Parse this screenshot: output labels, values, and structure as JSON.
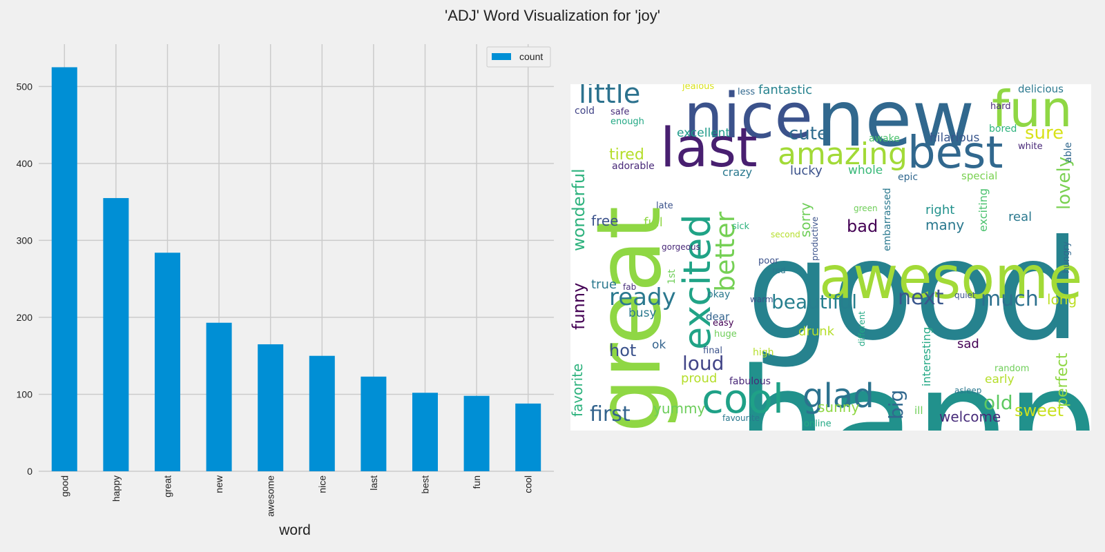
{
  "title": "'ADJ' Word Visualization for 'joy'",
  "chart_data": [
    {
      "type": "bar",
      "categories": [
        "good",
        "happy",
        "great",
        "new",
        "awesome",
        "nice",
        "last",
        "best",
        "fun",
        "cool"
      ],
      "series": [
        {
          "name": "count",
          "values": [
            525,
            355,
            284,
            193,
            165,
            150,
            123,
            102,
            98,
            88
          ]
        }
      ],
      "xlabel": "word",
      "ylabel": "",
      "ylim": [
        0,
        555
      ],
      "yticks": [
        0,
        100,
        200,
        300,
        400,
        500
      ],
      "grid": true,
      "legend": "top-right",
      "color": "#008fd5"
    }
  ],
  "wordcloud": {
    "colors": [
      "#440154",
      "#482878",
      "#3e4a89",
      "#31688e",
      "#26828e",
      "#1f9e89",
      "#35b779",
      "#6ece58",
      "#b5de2b",
      "#fde725"
    ],
    "words": [
      {
        "t": "good",
        "c": "#26828e",
        "r": false
      },
      {
        "t": "happy",
        "c": "#21918c",
        "r": false
      },
      {
        "t": "great",
        "c": "#8fd744",
        "r": true
      },
      {
        "t": "new",
        "c": "#31688e",
        "r": false
      },
      {
        "t": "nice",
        "c": "#3b528b",
        "r": false
      },
      {
        "t": "awesome",
        "c": "#a2da37",
        "r": false
      },
      {
        "t": "last",
        "c": "#481f70",
        "r": false
      },
      {
        "t": "best",
        "c": "#31688e",
        "r": false
      },
      {
        "t": "fun",
        "c": "#8fd744",
        "r": false
      },
      {
        "t": "excited",
        "c": "#20a386",
        "r": true
      },
      {
        "t": "cool",
        "c": "#1fa187",
        "r": false
      },
      {
        "t": "amazing",
        "c": "#a2da37",
        "r": false
      },
      {
        "t": "little",
        "c": "#2c728e",
        "r": false
      },
      {
        "t": "glad",
        "c": "#2c728e",
        "r": false
      },
      {
        "t": "better",
        "c": "#75d054",
        "r": true
      },
      {
        "t": "ready",
        "c": "#2a788e",
        "r": false
      },
      {
        "t": "beautiful",
        "c": "#277f8e",
        "r": false
      },
      {
        "t": "next",
        "c": "#39568c",
        "r": false
      },
      {
        "t": "much",
        "c": "#2d708e",
        "r": false
      },
      {
        "t": "first",
        "c": "#33638d",
        "r": false
      },
      {
        "t": "wonderful",
        "c": "#2db27d",
        "r": true
      },
      {
        "t": "loud",
        "c": "#414487",
        "r": false
      },
      {
        "t": "old",
        "c": "#5ec962",
        "r": false
      },
      {
        "t": "cute",
        "c": "#2f6c8e",
        "r": false
      },
      {
        "t": "sure",
        "c": "#d8e219",
        "r": false
      },
      {
        "t": "lovely",
        "c": "#7ad151",
        "r": true
      },
      {
        "t": "funny",
        "c": "#440154",
        "r": true
      },
      {
        "t": "sweet",
        "c": "#c8e020",
        "r": false
      },
      {
        "t": "big",
        "c": "#31688e",
        "r": true
      },
      {
        "t": "favorite",
        "c": "#2db27d",
        "r": true
      },
      {
        "t": "perfect",
        "c": "#8fd744",
        "r": true
      },
      {
        "t": "hot",
        "c": "#3b528b",
        "r": false
      },
      {
        "t": "fantastic",
        "c": "#26828e",
        "r": false
      },
      {
        "t": "tired",
        "c": "#b5de2b",
        "r": false
      },
      {
        "t": "yummy",
        "c": "#6ccd5a",
        "r": false
      },
      {
        "t": "sunny",
        "c": "#8fd744",
        "r": false
      },
      {
        "t": "proud",
        "c": "#b5de2b",
        "r": false
      },
      {
        "t": "long",
        "c": "#bddf26",
        "r": false
      },
      {
        "t": "welcome",
        "c": "#472c7a",
        "r": false
      },
      {
        "t": "bad",
        "c": "#440154",
        "r": false
      },
      {
        "t": "many",
        "c": "#2a788e",
        "r": false
      },
      {
        "t": "excellent",
        "c": "#1f9a8a",
        "r": false
      },
      {
        "t": "lucky",
        "c": "#3b528b",
        "r": false
      },
      {
        "t": "free",
        "c": "#3b528b",
        "r": false
      },
      {
        "t": "full",
        "c": "#8fd744",
        "r": false
      },
      {
        "t": "sorry",
        "c": "#6ece58",
        "r": true
      },
      {
        "t": "right",
        "c": "#21918c",
        "r": false
      },
      {
        "t": "real",
        "c": "#2a788e",
        "r": false
      },
      {
        "t": "true",
        "c": "#2a788e",
        "r": false
      },
      {
        "t": "busy",
        "c": "#2a788e",
        "r": false
      },
      {
        "t": "hilarious",
        "c": "#39568c",
        "r": false
      },
      {
        "t": "whole",
        "c": "#37b878",
        "r": false
      },
      {
        "t": "drunk",
        "c": "#b5de2b",
        "r": false
      },
      {
        "t": "exciting",
        "c": "#4ac16d",
        "r": true
      },
      {
        "t": "interesting",
        "c": "#22a884",
        "r": true
      },
      {
        "t": "delicious",
        "c": "#2a788e",
        "r": false
      },
      {
        "t": "early",
        "c": "#b5de2b",
        "r": false
      },
      {
        "t": "sad",
        "c": "#440154",
        "r": false
      },
      {
        "t": "crazy",
        "c": "#2a788e",
        "r": false
      },
      {
        "t": "ok",
        "c": "#33638d",
        "r": false
      },
      {
        "t": "adorable",
        "c": "#482878",
        "r": false
      },
      {
        "t": "epic",
        "c": "#31688e",
        "r": false
      },
      {
        "t": "special",
        "c": "#7ad151",
        "r": false
      },
      {
        "t": "dear",
        "c": "#33638d",
        "r": false
      },
      {
        "t": "fabulous",
        "c": "#482878",
        "r": false
      },
      {
        "t": "embarrassed",
        "c": "#2a788e",
        "r": true
      },
      {
        "t": "awake",
        "c": "#4ac16d",
        "r": false
      },
      {
        "t": "bored",
        "c": "#2db27d",
        "r": false
      },
      {
        "t": "okay",
        "c": "#2a788e",
        "r": false
      },
      {
        "t": "cold",
        "c": "#414487",
        "r": false
      },
      {
        "t": "safe",
        "c": "#472c7a",
        "r": false
      },
      {
        "t": "enough",
        "c": "#22a884",
        "r": false
      },
      {
        "t": "hard",
        "c": "#482878",
        "r": false
      },
      {
        "t": "white",
        "c": "#482878",
        "r": false
      },
      {
        "t": "late",
        "c": "#3b528b",
        "r": false
      },
      {
        "t": "1st",
        "c": "#6ece58",
        "r": true
      },
      {
        "t": "ill",
        "c": "#6ece58",
        "r": false
      },
      {
        "t": "able",
        "c": "#31688e",
        "r": true
      },
      {
        "t": "hungry",
        "c": "#31688e",
        "r": true
      },
      {
        "t": "random",
        "c": "#6ece58",
        "r": false
      },
      {
        "t": "online",
        "c": "#22a884",
        "r": false
      },
      {
        "t": "productive",
        "c": "#3b528b",
        "r": true
      },
      {
        "t": "sick",
        "c": "#2db27d",
        "r": false
      },
      {
        "t": "gorgeous",
        "c": "#482878",
        "r": false
      },
      {
        "t": "second",
        "c": "#b5de2b",
        "r": false
      },
      {
        "t": "poor",
        "c": "#3b528b",
        "r": false
      },
      {
        "t": "red",
        "c": "#2a788e",
        "r": false
      },
      {
        "t": "fab",
        "c": "#472c7a",
        "r": false
      },
      {
        "t": "warm",
        "c": "#3b528b",
        "r": false
      },
      {
        "t": "easy",
        "c": "#440154",
        "r": false
      },
      {
        "t": "huge",
        "c": "#6ece58",
        "r": false
      },
      {
        "t": "high",
        "c": "#b5de2b",
        "r": false
      },
      {
        "t": "final",
        "c": "#3b528b",
        "r": false
      },
      {
        "t": "different",
        "c": "#22a884",
        "r": true
      },
      {
        "t": "asleep",
        "c": "#2a788e",
        "r": false
      },
      {
        "t": "quiet",
        "c": "#3b528b",
        "r": false
      },
      {
        "t": "favourite",
        "c": "#2a788e",
        "r": false
      },
      {
        "t": "green",
        "c": "#6ece58",
        "r": false
      },
      {
        "t": "jealous",
        "c": "#d8e219",
        "r": false
      },
      {
        "t": "less",
        "c": "#31688e",
        "r": false
      }
    ]
  }
}
